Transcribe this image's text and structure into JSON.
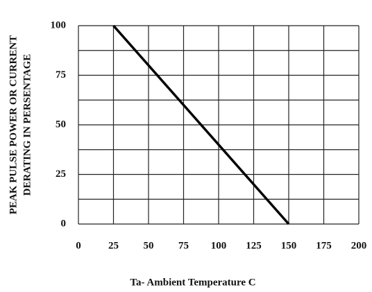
{
  "chart_data": {
    "type": "line",
    "xlabel": "Ta- Ambient Temperature C",
    "ylabel": [
      "PEAK PULSE POWER OR CURRENT",
      "DERATING IN PERSENTAGE"
    ],
    "x": [
      25,
      150
    ],
    "series": [
      {
        "values": [
          100,
          0
        ],
        "color": "#000000"
      }
    ],
    "xlim": [
      0,
      200
    ],
    "xticks": [
      0,
      25,
      50,
      75,
      100,
      125,
      150,
      175,
      200
    ],
    "ylim": [
      0,
      100
    ],
    "yticks": [
      0,
      25,
      50,
      75,
      100
    ],
    "yminor": [
      12.5,
      37.5,
      62.5,
      87.5
    ],
    "grid": true
  }
}
